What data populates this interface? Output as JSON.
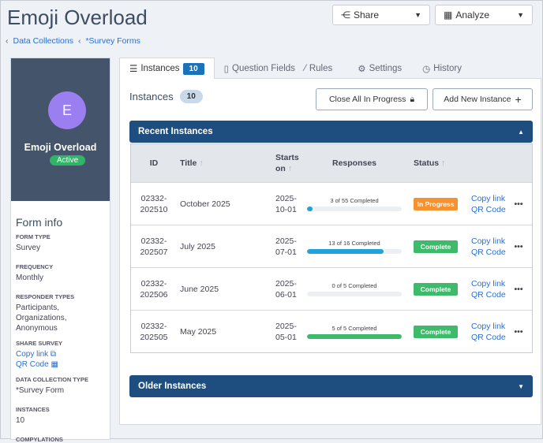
{
  "header": {
    "title": "Emoji Overload",
    "share": "Share",
    "analyze": "Analyze"
  },
  "breadcrumb": [
    "Data Collections",
    "*Survey Forms"
  ],
  "profile": {
    "initial": "E",
    "name": "Emoji Overload",
    "status": "Active"
  },
  "info": {
    "heading": "Form info",
    "form_type_label": "FORM TYPE",
    "form_type": "Survey",
    "frequency_label": "FREQUENCY",
    "frequency": "Monthly",
    "responder_label": "RESPONDER TYPES",
    "responder": "Participants, Organizations, Anonymous",
    "share_label": "SHARE SURVEY",
    "copy_link": "Copy link",
    "qr_code": "QR Code",
    "dct_label": "DATA COLLECTION TYPE",
    "dct": "*Survey Form",
    "instances_label": "INSTANCES",
    "instances": "10",
    "compylations_label": "COMPYLATIONS"
  },
  "tabs": {
    "instances": "Instances",
    "instances_count": "10",
    "question_fields": "Question Fields",
    "rules": "Rules",
    "settings": "Settings",
    "history": "History"
  },
  "main": {
    "title": "Instances",
    "count": "10",
    "close_all": "Close All In Progress",
    "add_new": "Add New Instance",
    "recent": "Recent Instances",
    "older": "Older Instances"
  },
  "table": {
    "headers": {
      "id": "ID",
      "title": "Title",
      "starts_on": "Starts on",
      "responses": "Responses",
      "status": "Status"
    },
    "rows": [
      {
        "id1": "02332-",
        "id2": "202510",
        "title": "October 2025",
        "d1": "2025-",
        "d2": "10-01",
        "responses": "3 of 55 Completed",
        "pct": 5.5,
        "status": "In Progress",
        "copy": "Copy link",
        "qr": "QR Code"
      },
      {
        "id1": "02332-",
        "id2": "202507",
        "title": "July 2025",
        "d1": "2025-",
        "d2": "07-01",
        "responses": "13 of 16 Completed",
        "pct": 81,
        "status": "Complete",
        "copy": "Copy link",
        "qr": "QR Code"
      },
      {
        "id1": "02332-",
        "id2": "202506",
        "title": "June 2025",
        "d1": "2025-",
        "d2": "06-01",
        "responses": "0 of 5 Completed",
        "pct": 0,
        "status": "Complete",
        "copy": "Copy link",
        "qr": "QR Code"
      },
      {
        "id1": "02332-",
        "id2": "202505",
        "title": "May 2025",
        "d1": "2025-",
        "d2": "05-01",
        "responses": "5 of 5 Completed",
        "pct": 100,
        "status": "Complete",
        "copy": "Copy link",
        "qr": "QR Code"
      }
    ]
  },
  "colors": {
    "in_progress": "#f7912d",
    "complete": "#3dba6a",
    "bar_blue": "#1fa3db",
    "bar_green": "#3dba6a"
  }
}
